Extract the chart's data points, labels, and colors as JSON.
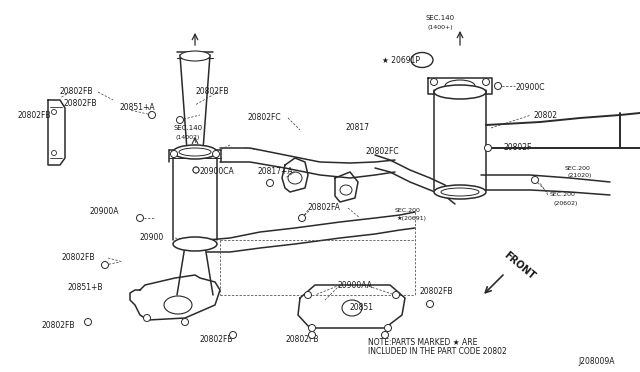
{
  "bg_color": "#ffffff",
  "line_color": "#2a2a2a",
  "label_color": "#1a1a1a",
  "fig_width": 6.4,
  "fig_height": 3.72,
  "diagram_id": "J208009A",
  "note_text": "NOTE:PARTS MARKED ★ ARE\nINCLUDED IN THE PART CODE 20802",
  "front_label": "FRONT"
}
